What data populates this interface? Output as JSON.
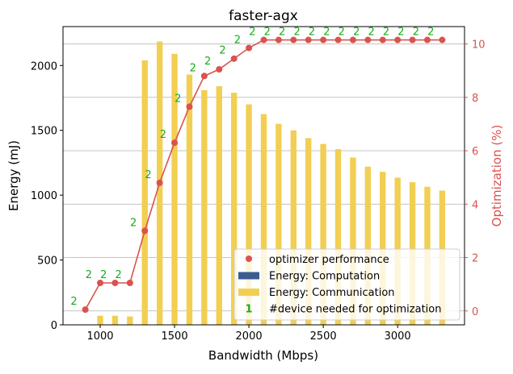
{
  "chart_data": {
    "type": "bar",
    "title": "faster-agx",
    "xlabel": "Bandwidth (Mbps)",
    "ylabel": "Energy (mJ)",
    "y2label": "Optimization (%)",
    "xlim": [
      750,
      3450
    ],
    "ylim": [
      0,
      2300
    ],
    "y2lim": [
      -0.52,
      10.65
    ],
    "xticks": [
      1000,
      1500,
      2000,
      2500,
      3000
    ],
    "yticks": [
      0,
      500,
      1000,
      1500,
      2000
    ],
    "y2ticks": [
      0,
      2,
      4,
      6,
      8,
      10
    ],
    "grid": "y2-horizontal",
    "legend_position": "lower-right",
    "colors": {
      "computation": "#3b5b92",
      "communication": "#f2cf52",
      "optimizer": "#d9534f",
      "device_label": "#1aaa1a",
      "grid": "#b0b0b0"
    },
    "bars": {
      "x": [
        1000,
        1100,
        1200,
        1300,
        1400,
        1500,
        1600,
        1700,
        1800,
        1900,
        2000,
        2100,
        2200,
        2300,
        2400,
        2500,
        2600,
        2700,
        2800,
        2900,
        3000,
        3100,
        3200,
        3300
      ],
      "computation": [
        0,
        0,
        0,
        0,
        0,
        0,
        0,
        0,
        0,
        0,
        0,
        0,
        0,
        0,
        0,
        0,
        0,
        0,
        0,
        0,
        0,
        0,
        0,
        0
      ],
      "communication": [
        70,
        70,
        65,
        2040,
        2185,
        2090,
        1930,
        1810,
        1840,
        1790,
        1700,
        1625,
        1550,
        1500,
        1440,
        1395,
        1355,
        1290,
        1220,
        1180,
        1135,
        1100,
        1065,
        1035
      ]
    },
    "optimizer": {
      "x": [
        900,
        1000,
        1100,
        1200,
        1300,
        1400,
        1500,
        1600,
        1700,
        1800,
        1900,
        2000,
        2100,
        2200,
        2300,
        2400,
        2500,
        2600,
        2700,
        2800,
        2900,
        3000,
        3100,
        3200,
        3300
      ],
      "values": [
        0.05,
        1.05,
        1.05,
        1.05,
        3.0,
        4.8,
        6.3,
        7.65,
        8.8,
        9.05,
        9.45,
        9.85,
        10.15,
        10.15,
        10.15,
        10.15,
        10.15,
        10.15,
        10.15,
        10.15,
        10.15,
        10.15,
        10.15,
        10.15,
        10.15
      ],
      "devices": [
        "2",
        "2",
        "2",
        "2",
        "2",
        "2",
        "2",
        "2",
        "2",
        "2",
        "2",
        "2",
        "2",
        "2",
        "2",
        "2",
        "2",
        "2",
        "2",
        "2",
        "2",
        "2",
        "2",
        "2",
        "2"
      ]
    },
    "legend": [
      {
        "label": "optimizer performance",
        "kind": "marker"
      },
      {
        "label": "Energy: Computation",
        "kind": "bar-computation"
      },
      {
        "label": "Energy: Communication",
        "kind": "bar-communication"
      },
      {
        "label": "#device needed for optimization",
        "kind": "text",
        "symbol": "1"
      }
    ]
  }
}
